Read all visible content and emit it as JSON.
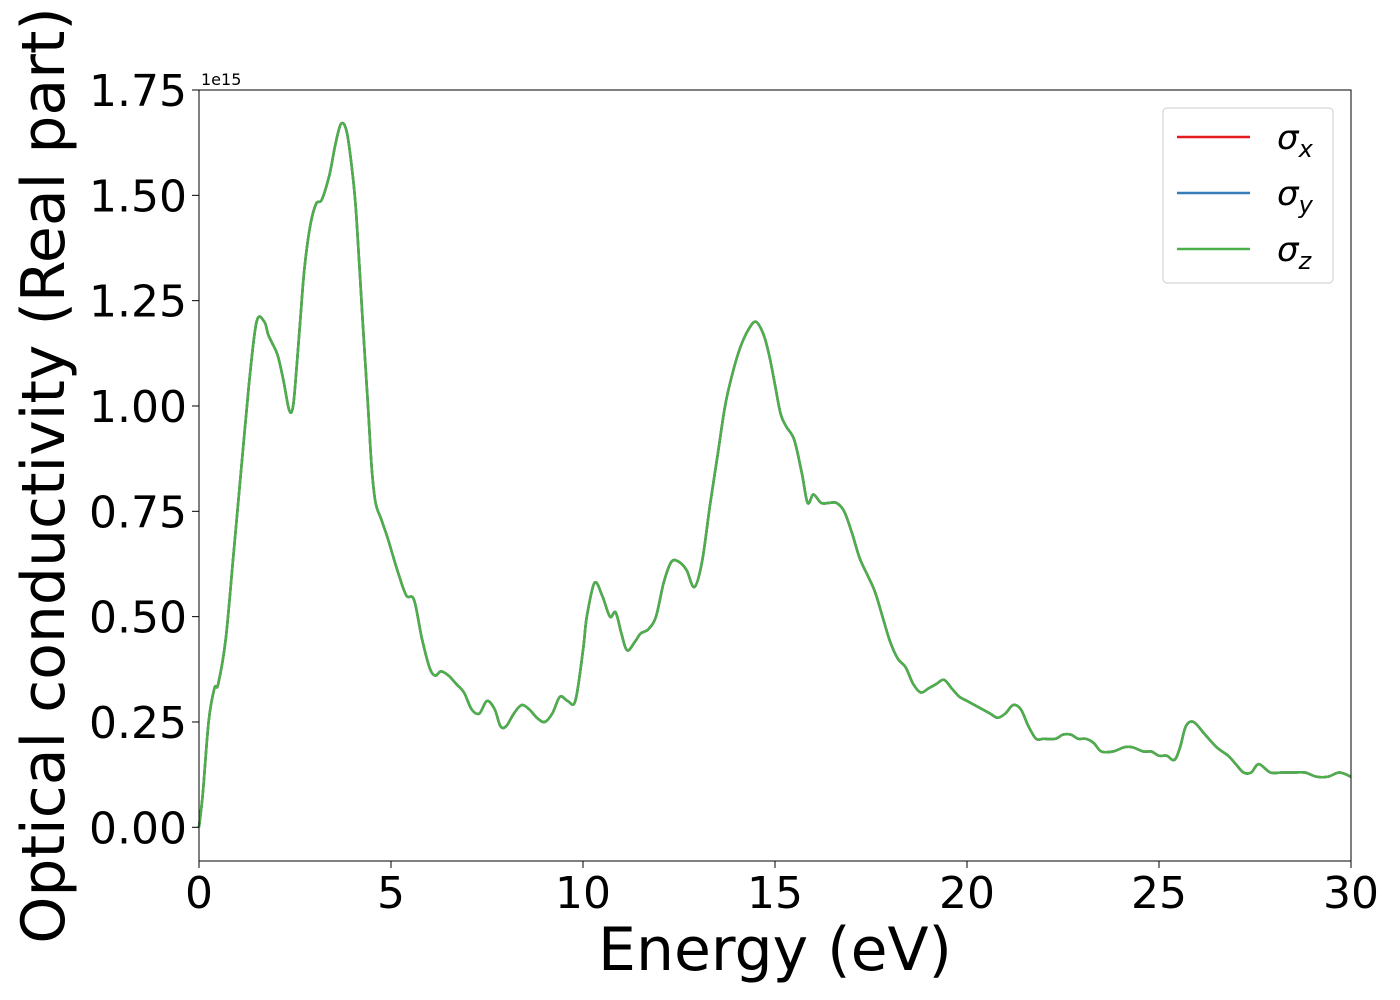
{
  "chart_data": {
    "type": "line",
    "title": "",
    "xlabel": "Energy (eV)",
    "ylabel": "Optical conductivity (Real part)",
    "offset_label": "1e15",
    "xlim": [
      0,
      30
    ],
    "ylim": [
      -0.08,
      1.75
    ],
    "xticks": [
      0,
      5,
      10,
      15,
      20,
      25,
      30
    ],
    "xtick_labels": [
      "0",
      "5",
      "10",
      "15",
      "20",
      "25",
      "30"
    ],
    "yticks": [
      0,
      0.25,
      0.5,
      0.75,
      1.0,
      1.25,
      1.5,
      1.75
    ],
    "ytick_labels": [
      "0.00",
      "0.25",
      "0.50",
      "0.75",
      "1.00",
      "1.25",
      "1.50",
      "1.75"
    ],
    "grid": false,
    "legend_position": "top-right",
    "x": [
      0,
      0.1,
      0.25,
      0.4,
      0.5,
      0.7,
      0.9,
      1.1,
      1.3,
      1.5,
      1.7,
      1.8,
      1.9,
      2.05,
      2.2,
      2.35,
      2.45,
      2.55,
      2.65,
      2.75,
      2.9,
      3.05,
      3.2,
      3.4,
      3.55,
      3.7,
      3.85,
      4.0,
      4.1,
      4.25,
      4.4,
      4.5,
      4.6,
      4.75,
      4.9,
      5.0,
      5.2,
      5.4,
      5.6,
      5.8,
      6.0,
      6.15,
      6.3,
      6.5,
      6.7,
      6.9,
      7.1,
      7.3,
      7.5,
      7.7,
      7.85,
      8.0,
      8.2,
      8.4,
      8.6,
      8.8,
      9.0,
      9.2,
      9.4,
      9.6,
      9.8,
      10.0,
      10.1,
      10.3,
      10.5,
      10.7,
      10.85,
      11.0,
      11.15,
      11.35,
      11.5,
      11.7,
      11.9,
      12.1,
      12.3,
      12.5,
      12.7,
      12.9,
      13.1,
      13.3,
      13.5,
      13.7,
      13.9,
      14.1,
      14.3,
      14.5,
      14.7,
      14.85,
      15.0,
      15.15,
      15.3,
      15.5,
      15.7,
      15.85,
      16.0,
      16.2,
      16.4,
      16.6,
      16.8,
      17.0,
      17.2,
      17.4,
      17.6,
      17.8,
      18.0,
      18.2,
      18.4,
      18.6,
      18.8,
      19.0,
      19.2,
      19.4,
      19.6,
      19.8,
      20.0,
      20.2,
      20.4,
      20.6,
      20.8,
      21.0,
      21.2,
      21.4,
      21.6,
      21.8,
      22.0,
      22.3,
      22.5,
      22.7,
      22.9,
      23.1,
      23.3,
      23.5,
      23.8,
      24.1,
      24.3,
      24.6,
      24.8,
      25.0,
      25.2,
      25.4,
      25.55,
      25.7,
      25.9,
      26.2,
      26.5,
      26.8,
      27.0,
      27.2,
      27.4,
      27.6,
      27.9,
      28.2,
      28.5,
      28.8,
      29.1,
      29.4,
      29.7,
      30.0
    ],
    "series": [
      {
        "name": "σx",
        "color": "#e41a1c",
        "y": [
          0.0,
          0.08,
          0.25,
          0.33,
          0.34,
          0.45,
          0.65,
          0.85,
          1.05,
          1.2,
          1.2,
          1.17,
          1.15,
          1.12,
          1.06,
          0.99,
          1.0,
          1.1,
          1.22,
          1.33,
          1.43,
          1.48,
          1.49,
          1.55,
          1.62,
          1.67,
          1.65,
          1.55,
          1.45,
          1.22,
          1.0,
          0.85,
          0.77,
          0.73,
          0.69,
          0.66,
          0.6,
          0.55,
          0.54,
          0.45,
          0.38,
          0.36,
          0.37,
          0.36,
          0.34,
          0.32,
          0.28,
          0.27,
          0.3,
          0.28,
          0.24,
          0.24,
          0.27,
          0.29,
          0.28,
          0.26,
          0.25,
          0.27,
          0.31,
          0.3,
          0.3,
          0.42,
          0.5,
          0.58,
          0.55,
          0.5,
          0.51,
          0.46,
          0.42,
          0.44,
          0.46,
          0.47,
          0.5,
          0.58,
          0.63,
          0.63,
          0.61,
          0.57,
          0.63,
          0.76,
          0.88,
          1.0,
          1.08,
          1.14,
          1.18,
          1.2,
          1.17,
          1.12,
          1.05,
          0.98,
          0.95,
          0.92,
          0.84,
          0.77,
          0.79,
          0.77,
          0.77,
          0.77,
          0.75,
          0.7,
          0.64,
          0.6,
          0.56,
          0.5,
          0.44,
          0.4,
          0.38,
          0.34,
          0.32,
          0.33,
          0.34,
          0.35,
          0.33,
          0.31,
          0.3,
          0.29,
          0.28,
          0.27,
          0.26,
          0.27,
          0.29,
          0.28,
          0.24,
          0.21,
          0.21,
          0.21,
          0.22,
          0.22,
          0.21,
          0.21,
          0.2,
          0.18,
          0.18,
          0.19,
          0.19,
          0.18,
          0.18,
          0.17,
          0.17,
          0.16,
          0.19,
          0.24,
          0.25,
          0.22,
          0.19,
          0.17,
          0.15,
          0.13,
          0.13,
          0.15,
          0.13,
          0.13,
          0.13,
          0.13,
          0.12,
          0.12,
          0.13,
          0.12
        ]
      },
      {
        "name": "σy",
        "color": "#377eb8",
        "y": [
          0.0,
          0.08,
          0.25,
          0.33,
          0.34,
          0.45,
          0.65,
          0.85,
          1.05,
          1.2,
          1.2,
          1.17,
          1.15,
          1.12,
          1.06,
          0.99,
          1.0,
          1.1,
          1.22,
          1.33,
          1.43,
          1.48,
          1.49,
          1.55,
          1.62,
          1.67,
          1.65,
          1.55,
          1.45,
          1.22,
          1.0,
          0.85,
          0.77,
          0.73,
          0.69,
          0.66,
          0.6,
          0.55,
          0.54,
          0.45,
          0.38,
          0.36,
          0.37,
          0.36,
          0.34,
          0.32,
          0.28,
          0.27,
          0.3,
          0.28,
          0.24,
          0.24,
          0.27,
          0.29,
          0.28,
          0.26,
          0.25,
          0.27,
          0.31,
          0.3,
          0.3,
          0.42,
          0.5,
          0.58,
          0.55,
          0.5,
          0.51,
          0.46,
          0.42,
          0.44,
          0.46,
          0.47,
          0.5,
          0.58,
          0.63,
          0.63,
          0.61,
          0.57,
          0.63,
          0.76,
          0.88,
          1.0,
          1.08,
          1.14,
          1.18,
          1.2,
          1.17,
          1.12,
          1.05,
          0.98,
          0.95,
          0.92,
          0.84,
          0.77,
          0.79,
          0.77,
          0.77,
          0.77,
          0.75,
          0.7,
          0.64,
          0.6,
          0.56,
          0.5,
          0.44,
          0.4,
          0.38,
          0.34,
          0.32,
          0.33,
          0.34,
          0.35,
          0.33,
          0.31,
          0.3,
          0.29,
          0.28,
          0.27,
          0.26,
          0.27,
          0.29,
          0.28,
          0.24,
          0.21,
          0.21,
          0.21,
          0.22,
          0.22,
          0.21,
          0.21,
          0.2,
          0.18,
          0.18,
          0.19,
          0.19,
          0.18,
          0.18,
          0.17,
          0.17,
          0.16,
          0.19,
          0.24,
          0.25,
          0.22,
          0.19,
          0.17,
          0.15,
          0.13,
          0.13,
          0.15,
          0.13,
          0.13,
          0.13,
          0.13,
          0.12,
          0.12,
          0.13,
          0.12
        ]
      },
      {
        "name": "σz",
        "color": "#4daf4a",
        "y": [
          0.0,
          0.08,
          0.25,
          0.33,
          0.34,
          0.45,
          0.65,
          0.85,
          1.05,
          1.2,
          1.2,
          1.17,
          1.15,
          1.12,
          1.06,
          0.99,
          1.0,
          1.1,
          1.22,
          1.33,
          1.43,
          1.48,
          1.49,
          1.55,
          1.62,
          1.67,
          1.65,
          1.55,
          1.45,
          1.22,
          1.0,
          0.85,
          0.77,
          0.73,
          0.69,
          0.66,
          0.6,
          0.55,
          0.54,
          0.45,
          0.38,
          0.36,
          0.37,
          0.36,
          0.34,
          0.32,
          0.28,
          0.27,
          0.3,
          0.28,
          0.24,
          0.24,
          0.27,
          0.29,
          0.28,
          0.26,
          0.25,
          0.27,
          0.31,
          0.3,
          0.3,
          0.42,
          0.5,
          0.58,
          0.55,
          0.5,
          0.51,
          0.46,
          0.42,
          0.44,
          0.46,
          0.47,
          0.5,
          0.58,
          0.63,
          0.63,
          0.61,
          0.57,
          0.63,
          0.76,
          0.88,
          1.0,
          1.08,
          1.14,
          1.18,
          1.2,
          1.17,
          1.12,
          1.05,
          0.98,
          0.95,
          0.92,
          0.84,
          0.77,
          0.79,
          0.77,
          0.77,
          0.77,
          0.75,
          0.7,
          0.64,
          0.6,
          0.56,
          0.5,
          0.44,
          0.4,
          0.38,
          0.34,
          0.32,
          0.33,
          0.34,
          0.35,
          0.33,
          0.31,
          0.3,
          0.29,
          0.28,
          0.27,
          0.26,
          0.27,
          0.29,
          0.28,
          0.24,
          0.21,
          0.21,
          0.21,
          0.22,
          0.22,
          0.21,
          0.21,
          0.2,
          0.18,
          0.18,
          0.19,
          0.19,
          0.18,
          0.18,
          0.17,
          0.17,
          0.16,
          0.19,
          0.24,
          0.25,
          0.22,
          0.19,
          0.17,
          0.15,
          0.13,
          0.13,
          0.15,
          0.13,
          0.13,
          0.13,
          0.13,
          0.12,
          0.12,
          0.13,
          0.12
        ]
      }
    ]
  }
}
